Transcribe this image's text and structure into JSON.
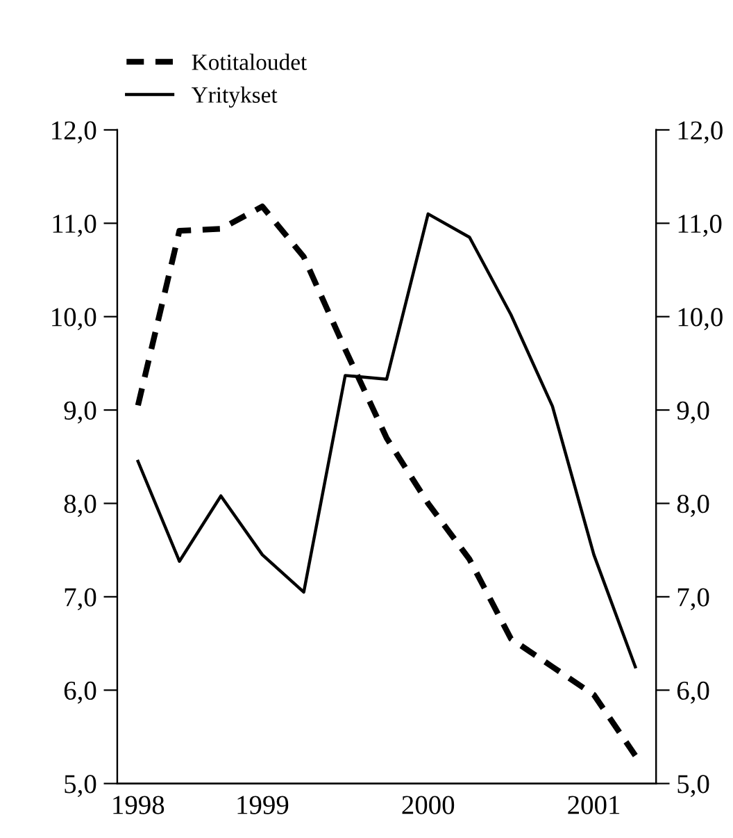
{
  "chart_data": {
    "type": "line",
    "categories": [
      "1998",
      null,
      null,
      "1999",
      null,
      null,
      null,
      "2000",
      null,
      null,
      null,
      "2001",
      null
    ],
    "series": [
      {
        "name": "Kotitaloudet",
        "color": "#000000",
        "line_style": "dashed",
        "values": [
          9.05,
          10.92,
          10.94,
          11.18,
          10.64,
          9.65,
          8.7,
          8.0,
          7.4,
          6.55,
          6.25,
          5.95,
          5.3
        ]
      },
      {
        "name": "Yritykset",
        "color": "#000000",
        "line_style": "solid",
        "values": [
          8.45,
          7.38,
          8.08,
          7.45,
          7.05,
          9.37,
          9.33,
          11.1,
          10.85,
          10.02,
          9.04,
          7.45,
          6.25
        ]
      }
    ],
    "ylim": [
      5,
      12
    ],
    "yticks": [
      {
        "value": 5,
        "label": "5,0"
      },
      {
        "value": 6,
        "label": "6,0"
      },
      {
        "value": 7,
        "label": "7,0"
      },
      {
        "value": 8,
        "label": "8,0"
      },
      {
        "value": 9,
        "label": "9,0"
      },
      {
        "value": 10,
        "label": "10,0"
      },
      {
        "value": 11,
        "label": "11,0"
      },
      {
        "value": 12,
        "label": "12,0"
      }
    ],
    "y2lim": [
      5,
      12
    ],
    "y2ticks": [
      {
        "value": 5,
        "label": "5,0"
      },
      {
        "value": 6,
        "label": "6,0"
      },
      {
        "value": 7,
        "label": "7,0"
      },
      {
        "value": 8,
        "label": "8,0"
      },
      {
        "value": 9,
        "label": "9,0"
      },
      {
        "value": 10,
        "label": "10,0"
      },
      {
        "value": 11,
        "label": "11,0"
      },
      {
        "value": 12,
        "label": "12,0"
      }
    ],
    "grid": false,
    "legend": "top left",
    "marker": "none"
  }
}
